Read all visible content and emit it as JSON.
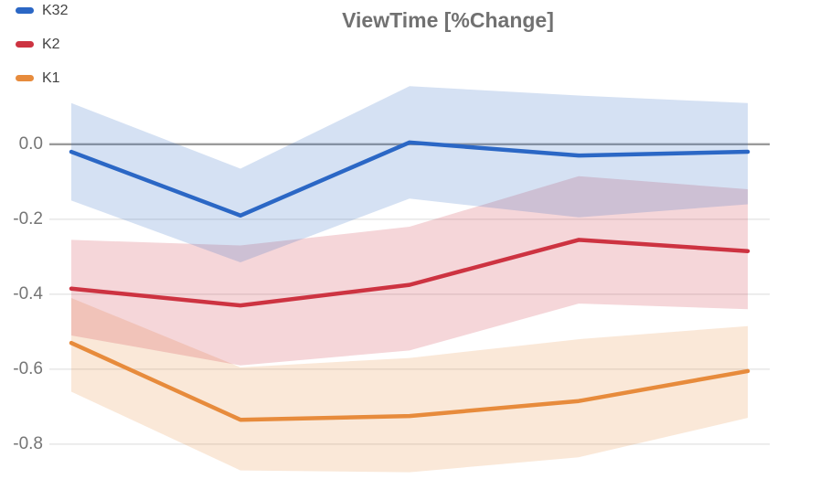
{
  "title": "ViewTime [%Change]",
  "chart_data": {
    "type": "line",
    "title": "ViewTime [%Change]",
    "x": [
      1,
      2,
      3,
      4,
      5
    ],
    "x_tick_labels_visible": false,
    "xlabel": "",
    "ylabel": "",
    "ylim": [
      -0.893,
      0.385
    ],
    "grid": true,
    "zero_line": true,
    "grid_color": "#e7e7e7",
    "zero_line_color": "#9b9b9b",
    "band_opacity": 0.2,
    "legend_position": "top-left",
    "yticks": {
      "values": [
        0,
        -0.2,
        -0.4,
        -0.6,
        -0.8
      ],
      "labels": [
        "0.0",
        "-0.2",
        "-0.4",
        "-0.6",
        "-0.8"
      ]
    },
    "series": [
      {
        "name": "K32",
        "color": "#2b67c5",
        "values": [
          -0.02,
          -0.19,
          0.005,
          -0.03,
          -0.02
        ],
        "band_upper": [
          0.11,
          -0.065,
          0.155,
          0.13,
          0.11
        ],
        "band_lower": [
          -0.15,
          -0.315,
          -0.145,
          -0.195,
          -0.16
        ]
      },
      {
        "name": "K2",
        "color": "#cd3341",
        "values": [
          -0.385,
          -0.43,
          -0.375,
          -0.255,
          -0.285
        ],
        "band_upper": [
          -0.255,
          -0.27,
          -0.22,
          -0.085,
          -0.12
        ],
        "band_lower": [
          -0.51,
          -0.59,
          -0.55,
          -0.425,
          -0.44
        ]
      },
      {
        "name": "K1",
        "color": "#e78b3c",
        "values": [
          -0.53,
          -0.735,
          -0.725,
          -0.685,
          -0.605
        ],
        "band_upper": [
          -0.41,
          -0.595,
          -0.57,
          -0.52,
          -0.485
        ],
        "band_lower": [
          -0.66,
          -0.87,
          -0.875,
          -0.835,
          -0.73
        ]
      }
    ]
  }
}
